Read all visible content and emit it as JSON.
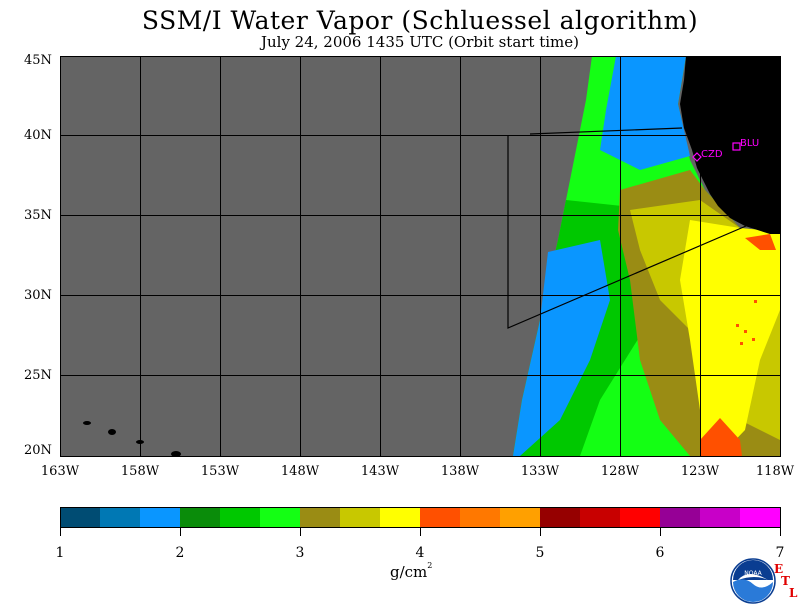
{
  "title": "SSM/I Water Vapor (Schluessel algorithm)",
  "subtitle": "July 24, 2006  1435 UTC  (Orbit start time)",
  "lat_labels": [
    "45N",
    "40N",
    "35N",
    "30N",
    "25N",
    "20N"
  ],
  "lon_labels": [
    "163W",
    "158W",
    "153W",
    "148W",
    "143W",
    "138W",
    "133W",
    "128W",
    "123W",
    "118W"
  ],
  "stations": [
    "CZD",
    "BLU"
  ],
  "colorbar": {
    "tick_labels": [
      "1",
      "2",
      "3",
      "4",
      "5",
      "6",
      "7"
    ],
    "units_base": "g/cm",
    "units_exp": "2",
    "colors": [
      "#004c73",
      "#0078b4",
      "#0a96ff",
      "#0a8c0a",
      "#00c800",
      "#14ff14",
      "#9a8c14",
      "#c8c800",
      "#ffff00",
      "#ff5000",
      "#ff7800",
      "#ffa000",
      "#960000",
      "#c80000",
      "#ff0000",
      "#960096",
      "#c800c8",
      "#ff00ff"
    ]
  },
  "map_colors": {
    "no_data": "#646464",
    "land": "#000000",
    "station": "#ff00ff"
  },
  "logo": {
    "name": "NOAA"
  },
  "etl_letters": [
    "E",
    "T",
    "L"
  ]
}
